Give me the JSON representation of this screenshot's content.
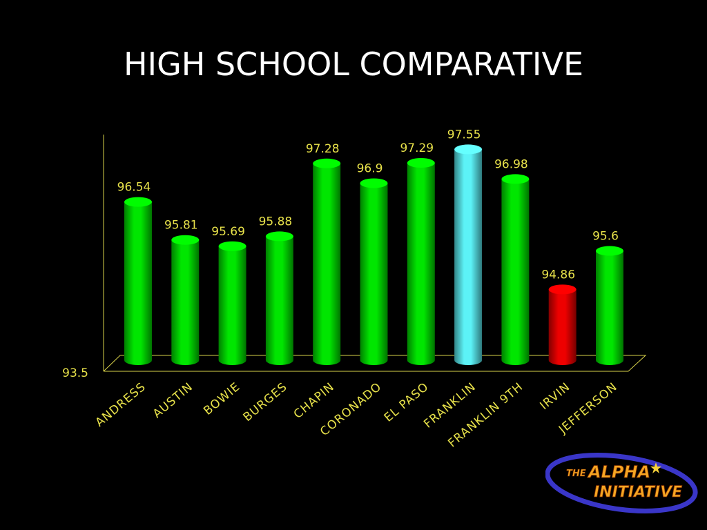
{
  "slide": {
    "title": "HIGH SCHOOL COMPARATIVE"
  },
  "chart_data": {
    "type": "bar",
    "title": "HIGH SCHOOL COMPARATIVE",
    "xlabel": "",
    "ylabel": "",
    "y_axis_min_label": "93.5",
    "ylim": [
      93.5,
      97.9
    ],
    "categories": [
      "ANDRESS",
      "AUSTIN",
      "BOWIE",
      "BURGES",
      "CHAPIN",
      "CORONADO",
      "EL PASO",
      "FRANKLIN",
      "FRANKLIN 9TH",
      "IRVIN",
      "JEFFERSON"
    ],
    "values": [
      96.54,
      95.81,
      95.69,
      95.88,
      97.28,
      96.9,
      97.29,
      97.55,
      96.98,
      94.86,
      95.6
    ],
    "value_labels": [
      "96.54",
      "95.81",
      "95.69",
      "95.88",
      "97.28",
      "96.9",
      "97.29",
      "97.55",
      "96.98",
      "94.86",
      "95.6"
    ],
    "bar_colors": [
      "#00e600",
      "#00e600",
      "#00e600",
      "#00e600",
      "#00e600",
      "#00e600",
      "#00e600",
      "#5cf2f7",
      "#00e600",
      "#ee0000",
      "#00e600"
    ],
    "grid": false,
    "legend": "none",
    "style": "3d-cylinder"
  },
  "logo": {
    "line1_small": "THE",
    "line1": "ALPHA",
    "line2": "INITIATIVE",
    "ring_color": "#3a36c8",
    "text_color": "#f5a623"
  },
  "colors": {
    "background": "#000000",
    "title": "#ffffff",
    "labels": "#e8e24a",
    "axis": "#d8d24a"
  }
}
